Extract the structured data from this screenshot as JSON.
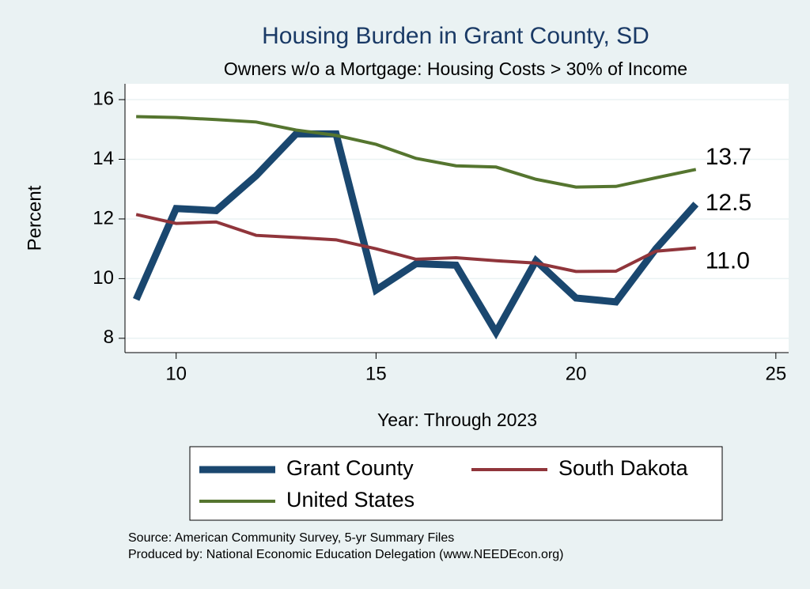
{
  "chart_data": {
    "type": "line",
    "title": "Housing Burden in Grant County, SD",
    "subtitle": "Owners w/o a Mortgage: Housing Costs > 30% of Income",
    "x_label": "Year: Through 2023",
    "y_label": "Percent",
    "x": [
      9,
      10,
      11,
      12,
      13,
      14,
      15,
      16,
      17,
      18,
      19,
      20,
      21,
      22,
      23
    ],
    "series": [
      {
        "name": "Grant County",
        "color": "#1a476f",
        "width": 9,
        "values": [
          9.3,
          12.35,
          12.28,
          13.45,
          14.85,
          14.85,
          9.62,
          10.5,
          10.45,
          8.2,
          10.6,
          9.35,
          9.22,
          11.0,
          12.5
        ],
        "value_labels": [
          null,
          null,
          null,
          null,
          null,
          null,
          null,
          null,
          null,
          null,
          null,
          null,
          null,
          null,
          "12.5"
        ]
      },
      {
        "name": "South Dakota",
        "color": "#90353b",
        "width": 4,
        "values": [
          12.15,
          11.85,
          11.9,
          11.45,
          11.38,
          11.3,
          11.0,
          10.65,
          10.7,
          10.6,
          10.52,
          10.24,
          10.25,
          10.92,
          11.03
        ],
        "value_labels": [
          null,
          null,
          null,
          null,
          null,
          null,
          null,
          null,
          null,
          null,
          null,
          null,
          null,
          null,
          "11.0"
        ]
      },
      {
        "name": "United States",
        "color": "#55752f",
        "width": 4,
        "values": [
          15.43,
          15.4,
          15.33,
          15.25,
          14.98,
          14.8,
          14.5,
          14.03,
          13.78,
          13.74,
          13.33,
          13.07,
          13.09,
          13.38,
          13.66
        ],
        "value_labels": [
          null,
          null,
          null,
          null,
          null,
          null,
          null,
          null,
          null,
          null,
          null,
          null,
          null,
          null,
          "13.7"
        ]
      }
    ],
    "xlim": [
      8.72,
      25.32
    ],
    "ylim": [
      7.52,
      16.53
    ],
    "xticks": [
      10,
      15,
      20,
      25
    ],
    "yticks": [
      8,
      10,
      12,
      14,
      16
    ],
    "grid": true,
    "legend": "bottom",
    "source": "Source: American Community Survey, 5-yr Summary Files",
    "producer": "Produced by: National Economic Education Delegation (www.NEEDEcon.org)"
  }
}
